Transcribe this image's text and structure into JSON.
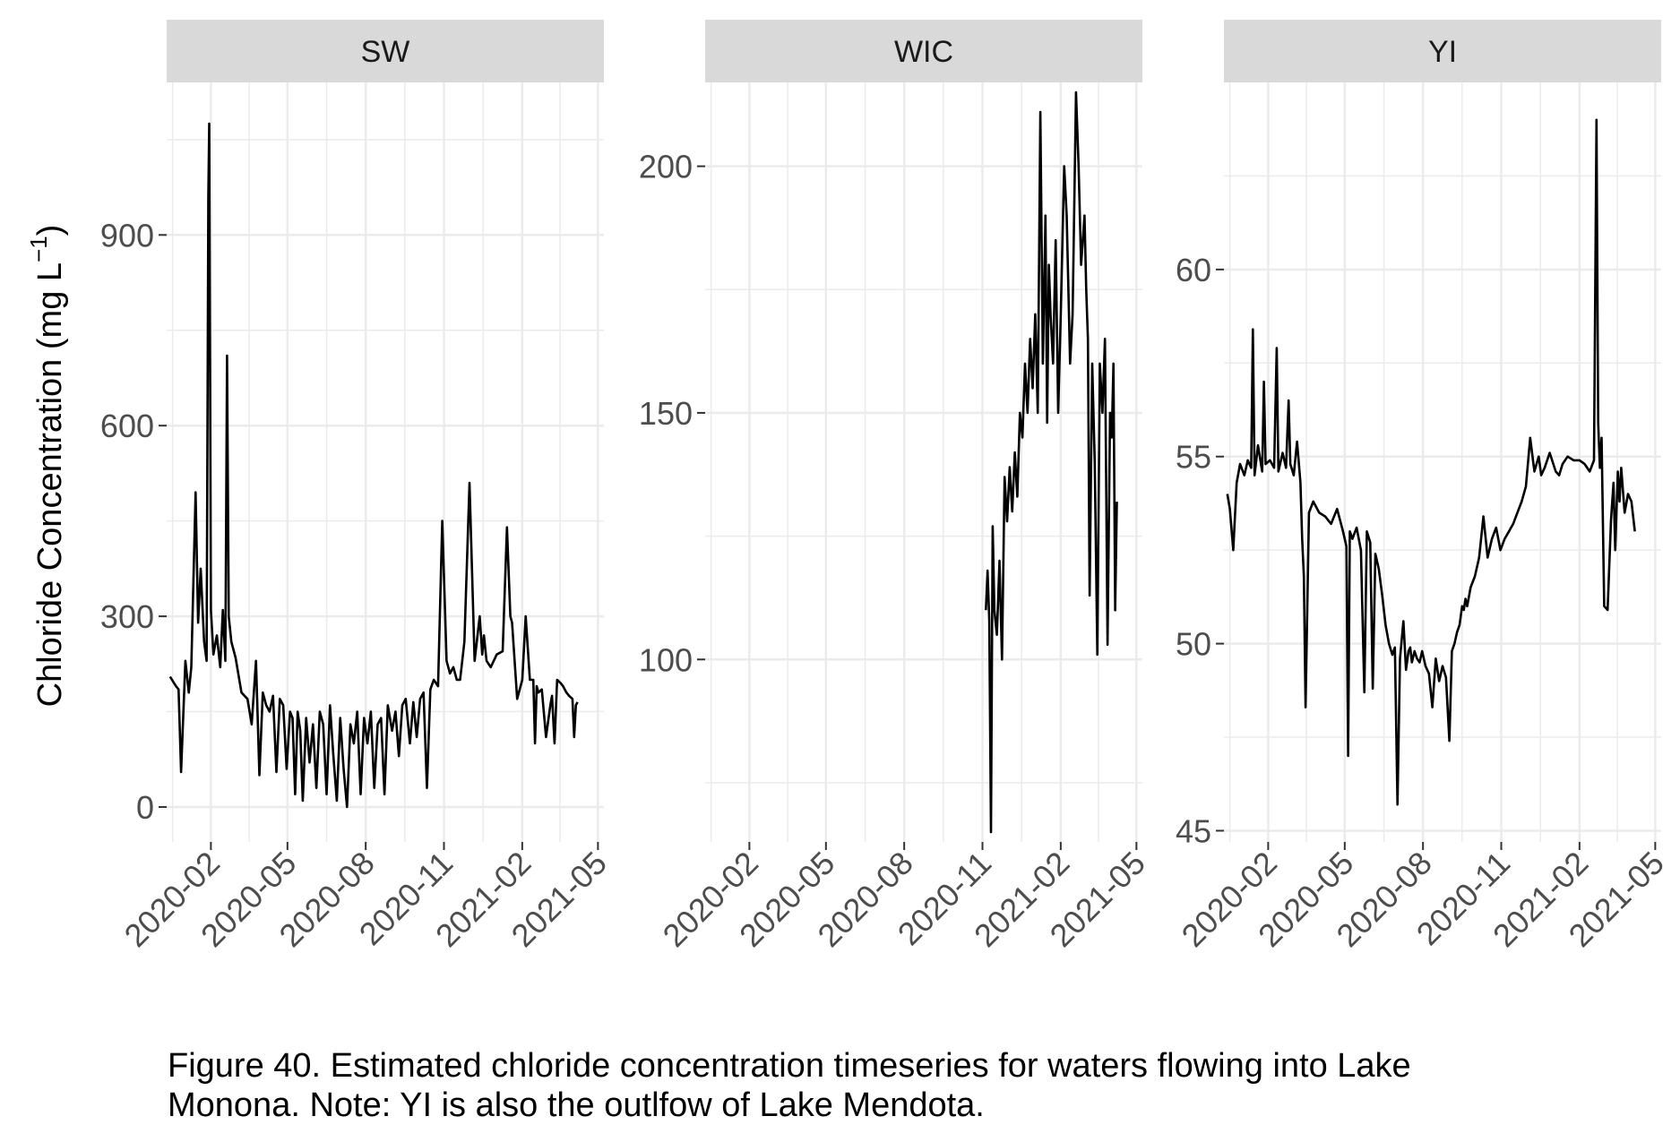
{
  "caption": {
    "line1": "Figure 40. Estimated chloride concentration timeseries for waters flowing into Lake",
    "line2": "Monona. Note: YI is also the outlfow of Lake Mendota."
  },
  "colors": {
    "line": "#000000",
    "strip_bg": "#d9d9d9",
    "grid": "#ebebeb",
    "tick_text": "#4d4d4d"
  },
  "chart_data": [
    {
      "type": "line",
      "panel": "SW",
      "ylabel_main": "Chloride Concentration ",
      "ylabel_unit": "(mg L",
      "ylabel_exp": "−1",
      "ylabel_close": ")",
      "x_ticks": [
        "2020-02",
        "2020-05",
        "2020-08",
        "2020-11",
        "2021-02",
        "2021-05"
      ],
      "xlim": [
        "2019-12-11",
        "2021-05-08"
      ],
      "y_ticks": [
        0,
        300,
        600,
        900
      ],
      "ylim": [
        -55,
        1140
      ],
      "grid": true,
      "series": [
        {
          "x": [
            "2019-12-15",
            "2019-12-22",
            "2019-12-25",
            "2019-12-28",
            "2020-01-02",
            "2020-01-06",
            "2020-01-09",
            "2020-01-14",
            "2020-01-17",
            "2020-01-20",
            "2020-01-24",
            "2020-01-27",
            "2020-01-29",
            "2020-01-30",
            "2020-02-01",
            "2020-02-04",
            "2020-02-08",
            "2020-02-12",
            "2020-02-15",
            "2020-02-18",
            "2020-02-20",
            "2020-02-22",
            "2020-02-25",
            "2020-03-01",
            "2020-03-08",
            "2020-03-15",
            "2020-03-20",
            "2020-03-25",
            "2020-03-29",
            "2020-04-02",
            "2020-04-06",
            "2020-04-10",
            "2020-04-14",
            "2020-04-18",
            "2020-04-22",
            "2020-04-26",
            "2020-04-30",
            "2020-05-04",
            "2020-05-07",
            "2020-05-10",
            "2020-05-13",
            "2020-05-16",
            "2020-05-19",
            "2020-05-23",
            "2020-05-27",
            "2020-05-31",
            "2020-06-04",
            "2020-06-08",
            "2020-06-12",
            "2020-06-16",
            "2020-06-20",
            "2020-06-24",
            "2020-06-28",
            "2020-07-02",
            "2020-07-06",
            "2020-07-10",
            "2020-07-14",
            "2020-07-18",
            "2020-07-22",
            "2020-07-26",
            "2020-07-30",
            "2020-08-03",
            "2020-08-07",
            "2020-08-11",
            "2020-08-15",
            "2020-08-19",
            "2020-08-23",
            "2020-08-27",
            "2020-09-01",
            "2020-09-05",
            "2020-09-09",
            "2020-09-13",
            "2020-09-17",
            "2020-09-22",
            "2020-09-26",
            "2020-09-30",
            "2020-10-04",
            "2020-10-08",
            "2020-10-12",
            "2020-10-16",
            "2020-10-20",
            "2020-10-25",
            "2020-10-30",
            "2020-11-04",
            "2020-11-08",
            "2020-11-12",
            "2020-11-16",
            "2020-11-20",
            "2020-11-25",
            "2020-12-01",
            "2020-12-07",
            "2020-12-13",
            "2020-12-16",
            "2020-12-18",
            "2020-12-21",
            "2020-12-26",
            "2021-01-02",
            "2021-01-09",
            "2021-01-14",
            "2021-01-18",
            "2021-01-20",
            "2021-01-22",
            "2021-01-26",
            "2021-02-01",
            "2021-02-05",
            "2021-02-10",
            "2021-02-14",
            "2021-02-16",
            "2021-02-18",
            "2021-02-20",
            "2021-02-24",
            "2021-03-01",
            "2021-03-06",
            "2021-03-08",
            "2021-03-11",
            "2021-03-14",
            "2021-03-18",
            "2021-03-21",
            "2021-03-25",
            "2021-03-28",
            "2021-04-01",
            "2021-04-03",
            "2021-04-05",
            "2021-04-07"
          ],
          "y": [
            205,
            190,
            185,
            55,
            230,
            180,
            220,
            495,
            290,
            375,
            260,
            230,
            960,
            1075,
            310,
            240,
            270,
            220,
            310,
            230,
            710,
            300,
            260,
            235,
            180,
            170,
            130,
            230,
            50,
            180,
            160,
            150,
            175,
            55,
            170,
            160,
            60,
            150,
            140,
            20,
            150,
            120,
            10,
            140,
            70,
            130,
            30,
            150,
            130,
            20,
            160,
            80,
            10,
            140,
            60,
            0,
            130,
            100,
            150,
            20,
            140,
            100,
            150,
            30,
            130,
            140,
            20,
            160,
            120,
            150,
            80,
            160,
            170,
            100,
            165,
            110,
            170,
            180,
            30,
            185,
            200,
            190,
            450,
            230,
            210,
            220,
            200,
            200,
            260,
            510,
            230,
            300,
            240,
            270,
            230,
            220,
            240,
            245,
            440,
            300,
            290,
            250,
            170,
            200,
            300,
            200,
            200,
            100,
            190,
            180,
            185,
            110,
            160,
            175,
            100,
            200,
            195,
            190,
            180,
            175,
            170,
            110,
            160,
            165
          ],
          "note": "approximate trace"
        }
      ]
    },
    {
      "type": "line",
      "panel": "WIC",
      "x_ticks": [
        "2020-02",
        "2020-05",
        "2020-08",
        "2020-11",
        "2021-02",
        "2021-05"
      ],
      "xlim": [
        "2019-12-11",
        "2021-05-08"
      ],
      "y_ticks": [
        100,
        150,
        200
      ],
      "ylim": [
        63,
        217
      ],
      "grid": true,
      "series": [
        {
          "x": [
            "2020-11-05",
            "2020-11-07",
            "2020-11-09",
            "2020-11-11",
            "2020-11-13",
            "2020-11-15",
            "2020-11-18",
            "2020-11-21",
            "2020-11-24",
            "2020-11-27",
            "2020-11-30",
            "2020-12-03",
            "2020-12-06",
            "2020-12-09",
            "2020-12-12",
            "2020-12-15",
            "2020-12-18",
            "2020-12-21",
            "2020-12-24",
            "2020-12-27",
            "2020-12-30",
            "2021-01-02",
            "2021-01-05",
            "2021-01-08",
            "2021-01-11",
            "2021-01-14",
            "2021-01-16",
            "2021-01-18",
            "2021-01-20",
            "2021-01-23",
            "2021-01-26",
            "2021-01-29",
            "2021-02-01",
            "2021-02-05",
            "2021-02-08",
            "2021-02-12",
            "2021-02-15",
            "2021-02-19",
            "2021-02-22",
            "2021-02-25",
            "2021-03-01",
            "2021-03-03",
            "2021-03-05",
            "2021-03-07",
            "2021-03-10",
            "2021-03-13",
            "2021-03-16",
            "2021-03-19",
            "2021-03-22",
            "2021-03-25",
            "2021-03-28",
            "2021-03-31",
            "2021-04-02",
            "2021-04-04",
            "2021-04-06",
            "2021-04-08"
          ],
          "y": [
            110,
            118,
            108,
            65,
            127,
            110,
            105,
            120,
            100,
            137,
            128,
            139,
            130,
            142,
            133,
            150,
            145,
            160,
            150,
            165,
            155,
            170,
            150,
            211,
            160,
            190,
            148,
            180,
            170,
            160,
            185,
            150,
            170,
            200,
            190,
            160,
            170,
            215,
            200,
            180,
            190,
            175,
            165,
            113,
            160,
            140,
            101,
            160,
            150,
            165,
            103,
            150,
            145,
            160,
            110,
            132
          ],
          "note": "approximate trace"
        }
      ]
    },
    {
      "type": "line",
      "panel": "YI",
      "x_ticks": [
        "2020-02",
        "2020-05",
        "2020-08",
        "2020-11",
        "2021-02",
        "2021-05"
      ],
      "xlim": [
        "2019-12-11",
        "2021-05-08"
      ],
      "y_ticks": [
        45,
        50,
        55,
        60
      ],
      "ylim": [
        44.7,
        65.0
      ],
      "grid": true,
      "series": [
        {
          "x": [
            "2019-12-15",
            "2019-12-18",
            "2019-12-22",
            "2019-12-26",
            "2019-12-30",
            "2020-01-04",
            "2020-01-08",
            "2020-01-12",
            "2020-01-14",
            "2020-01-16",
            "2020-01-20",
            "2020-01-25",
            "2020-01-27",
            "2020-01-29",
            "2020-02-03",
            "2020-02-08",
            "2020-02-11",
            "2020-02-13",
            "2020-02-18",
            "2020-02-22",
            "2020-02-25",
            "2020-02-27",
            "2020-03-02",
            "2020-03-06",
            "2020-03-10",
            "2020-03-12",
            "2020-03-14",
            "2020-03-16",
            "2020-03-20",
            "2020-03-25",
            "2020-04-01",
            "2020-04-08",
            "2020-04-15",
            "2020-04-22",
            "2020-04-29",
            "2020-05-03",
            "2020-05-05",
            "2020-05-07",
            "2020-05-10",
            "2020-05-15",
            "2020-05-20",
            "2020-05-24",
            "2020-05-27",
            "2020-05-31",
            "2020-06-03",
            "2020-06-06",
            "2020-06-10",
            "2020-06-14",
            "2020-06-18",
            "2020-06-22",
            "2020-06-26",
            "2020-06-29",
            "2020-07-02",
            "2020-07-05",
            "2020-07-09",
            "2020-07-12",
            "2020-07-15",
            "2020-07-17",
            "2020-07-19",
            "2020-07-22",
            "2020-07-25",
            "2020-07-28",
            "2020-07-31",
            "2020-08-04",
            "2020-08-08",
            "2020-08-12",
            "2020-08-16",
            "2020-08-20",
            "2020-08-24",
            "2020-08-28",
            "2020-09-01",
            "2020-09-04",
            "2020-09-07",
            "2020-09-10",
            "2020-09-13",
            "2020-09-16",
            "2020-09-18",
            "2020-09-20",
            "2020-09-22",
            "2020-09-26",
            "2020-10-01",
            "2020-10-06",
            "2020-10-11",
            "2020-10-16",
            "2020-10-21",
            "2020-10-26",
            "2020-10-31",
            "2020-11-05",
            "2020-11-10",
            "2020-11-15",
            "2020-11-20",
            "2020-11-25",
            "2020-11-30",
            "2020-12-05",
            "2020-12-10",
            "2020-12-15",
            "2020-12-18",
            "2020-12-22",
            "2020-12-28",
            "2021-01-04",
            "2021-01-08",
            "2021-01-12",
            "2021-01-18",
            "2021-01-25",
            "2021-02-01",
            "2021-02-07",
            "2021-02-13",
            "2021-02-18",
            "2021-02-21",
            "2021-02-23",
            "2021-02-25",
            "2021-02-27",
            "2021-03-02",
            "2021-03-06",
            "2021-03-10",
            "2021-03-13",
            "2021-03-15",
            "2021-03-18",
            "2021-03-20",
            "2021-03-22",
            "2021-03-26",
            "2021-03-30",
            "2021-04-03",
            "2021-04-07"
          ],
          "y": [
            54.0,
            53.6,
            52.5,
            54.3,
            54.8,
            54.5,
            54.9,
            54.7,
            58.4,
            54.5,
            55.3,
            54.6,
            57.0,
            54.8,
            54.9,
            54.7,
            57.9,
            54.6,
            55.1,
            54.7,
            56.5,
            54.8,
            54.5,
            55.4,
            54.3,
            52.8,
            51.8,
            48.3,
            53.5,
            53.8,
            53.5,
            53.4,
            53.2,
            53.6,
            53.0,
            52.6,
            47.0,
            53.0,
            52.8,
            53.1,
            52.5,
            48.7,
            53.0,
            52.7,
            48.8,
            52.4,
            52.0,
            51.3,
            50.5,
            50.0,
            49.7,
            49.9,
            45.7,
            49.6,
            50.6,
            49.3,
            49.8,
            49.9,
            49.5,
            49.8,
            49.6,
            49.5,
            49.8,
            49.4,
            49.2,
            48.3,
            49.6,
            49.0,
            49.4,
            49.1,
            47.4,
            49.8,
            50.0,
            50.3,
            50.5,
            51.0,
            50.9,
            51.2,
            51.0,
            51.5,
            51.8,
            52.3,
            53.4,
            52.3,
            52.8,
            53.1,
            52.5,
            52.8,
            53.0,
            53.2,
            53.5,
            53.8,
            54.2,
            55.5,
            54.6,
            55.0,
            54.5,
            54.7,
            55.1,
            54.6,
            54.5,
            54.8,
            55.0,
            54.9,
            54.9,
            54.8,
            54.6,
            54.9,
            64.0,
            55.9,
            54.7,
            55.5,
            51.0,
            50.9,
            53.3,
            54.3,
            52.5,
            54.6,
            53.8,
            54.7,
            53.5,
            54.0,
            53.8,
            53.0
          ],
          "note": "approximate trace"
        }
      ]
    }
  ]
}
